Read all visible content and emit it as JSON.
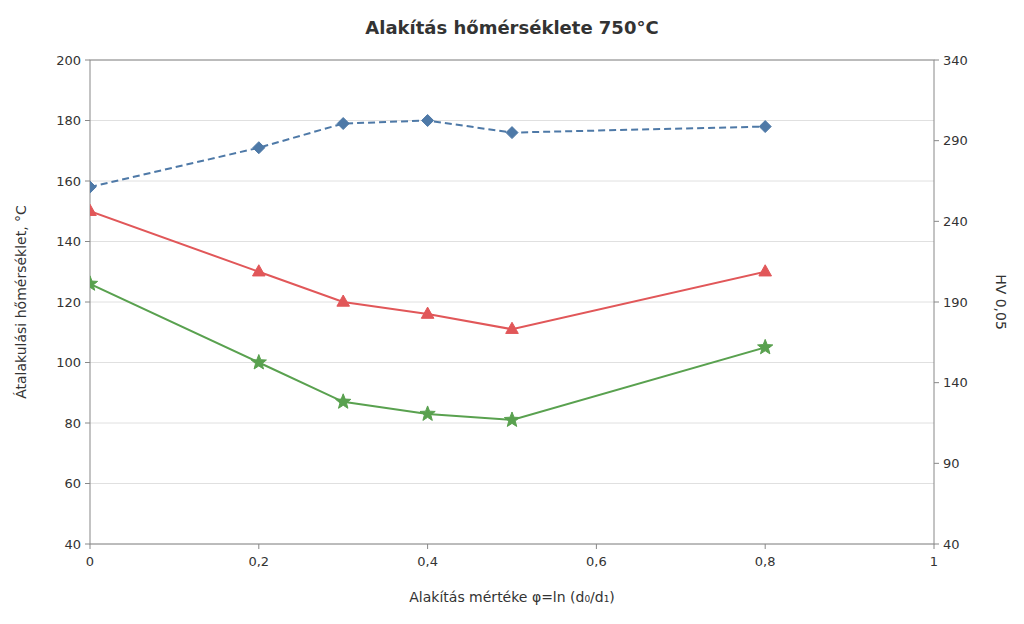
{
  "chart_data": {
    "type": "line",
    "title": "Alakítás hőmérséklete 750°C",
    "x_label": "Alakítás mértéke φ=ln (d₀/d₁)",
    "y_label": "Átalakulási hőmérséklet, °C",
    "y2_label": "HV 0,05",
    "x": [
      0,
      0.2,
      0.3,
      0.4,
      0.5,
      0.8
    ],
    "xlim": [
      0,
      1
    ],
    "xticks": [
      0,
      {
        "value": 0.2,
        "label": "0,2"
      },
      {
        "value": 0.4,
        "label": "0,4"
      },
      {
        "value": 0.6,
        "label": "0,6"
      },
      {
        "value": 0.8,
        "label": "0,8"
      },
      1
    ],
    "ylim": [
      40,
      200
    ],
    "yticks": [
      40,
      60,
      80,
      100,
      120,
      140,
      160,
      180,
      200
    ],
    "y2lim": [
      40,
      340
    ],
    "y2ticks": [
      40,
      90,
      140,
      190,
      240,
      290,
      340
    ],
    "grid": true,
    "series": [
      {
        "color": "#4e79a7",
        "marker": "diamond",
        "line_style": "dashed",
        "values": [
          158,
          171,
          179,
          180,
          176,
          178
        ]
      },
      {
        "color": "#e15759",
        "marker": "triangle",
        "line_style": "solid",
        "values": [
          150,
          130,
          120,
          116,
          111,
          130
        ]
      },
      {
        "color": "#59a14f",
        "marker": "star",
        "line_style": "solid",
        "values": [
          126,
          100,
          87,
          83,
          81,
          105
        ]
      }
    ]
  }
}
